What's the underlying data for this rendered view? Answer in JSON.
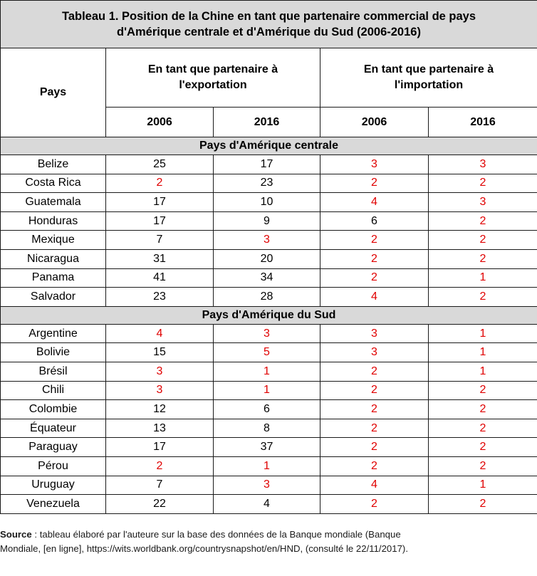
{
  "title_line1": "Tableau 1. Position de la Chine en tant que partenaire commercial de pays",
  "title_line2": "d'Amérique centrale et d'Amérique du Sud (2006-2016)",
  "headers": {
    "pays": "Pays",
    "export_line1": "En tant que partenaire à",
    "export_line2": "l'exportation",
    "import_line1": "En tant que partenaire à",
    "import_line2": "l'importation",
    "years": [
      "2006",
      "2016",
      "2006",
      "2016"
    ]
  },
  "sections": [
    {
      "label": "Pays d'Amérique centrale",
      "rows": [
        {
          "country": "Belize",
          "values": [
            "25",
            "17",
            "3",
            "3"
          ],
          "red": [
            false,
            false,
            true,
            true
          ]
        },
        {
          "country": "Costa Rica",
          "values": [
            "2",
            "23",
            "2",
            "2"
          ],
          "red": [
            true,
            false,
            true,
            true
          ]
        },
        {
          "country": "Guatemala",
          "values": [
            "17",
            "10",
            "4",
            "3"
          ],
          "red": [
            false,
            false,
            true,
            true
          ]
        },
        {
          "country": "Honduras",
          "values": [
            "17",
            "9",
            "6",
            "2"
          ],
          "red": [
            false,
            false,
            false,
            true
          ]
        },
        {
          "country": "Mexique",
          "values": [
            "7",
            "3",
            "2",
            "2"
          ],
          "red": [
            false,
            true,
            true,
            true
          ]
        },
        {
          "country": "Nicaragua",
          "values": [
            "31",
            "20",
            "2",
            "2"
          ],
          "red": [
            false,
            false,
            true,
            true
          ]
        },
        {
          "country": "Panama",
          "values": [
            "41",
            "34",
            "2",
            "1"
          ],
          "red": [
            false,
            false,
            true,
            true
          ]
        },
        {
          "country": "Salvador",
          "values": [
            "23",
            "28",
            "4",
            "2"
          ],
          "red": [
            false,
            false,
            true,
            true
          ]
        }
      ]
    },
    {
      "label": "Pays d'Amérique du Sud",
      "rows": [
        {
          "country": "Argentine",
          "values": [
            "4",
            "3",
            "3",
            "1"
          ],
          "red": [
            true,
            true,
            true,
            true
          ]
        },
        {
          "country": "Bolivie",
          "values": [
            "15",
            "5",
            "3",
            "1"
          ],
          "red": [
            false,
            true,
            true,
            true
          ]
        },
        {
          "country": "Brésil",
          "values": [
            "3",
            "1",
            "2",
            "1"
          ],
          "red": [
            true,
            true,
            true,
            true
          ]
        },
        {
          "country": "Chili",
          "values": [
            "3",
            "1",
            "2",
            "2"
          ],
          "red": [
            true,
            true,
            true,
            true
          ]
        },
        {
          "country": "Colombie",
          "values": [
            "12",
            "6",
            "2",
            "2"
          ],
          "red": [
            false,
            false,
            true,
            true
          ]
        },
        {
          "country": "Équateur",
          "values": [
            "13",
            "8",
            "2",
            "2"
          ],
          "red": [
            false,
            false,
            true,
            true
          ]
        },
        {
          "country": "Paraguay",
          "values": [
            "17",
            "37",
            "2",
            "2"
          ],
          "red": [
            false,
            false,
            true,
            true
          ]
        },
        {
          "country": "Pérou",
          "values": [
            "2",
            "1",
            "2",
            "2"
          ],
          "red": [
            true,
            true,
            true,
            true
          ]
        },
        {
          "country": "Uruguay",
          "values": [
            "7",
            "3",
            "4",
            "1"
          ],
          "red": [
            false,
            true,
            true,
            true
          ]
        },
        {
          "country": "Venezuela",
          "values": [
            "22",
            "4",
            "2",
            "2"
          ],
          "red": [
            false,
            false,
            true,
            true
          ]
        }
      ]
    }
  ],
  "source": {
    "label": "Source",
    "line1": " : tableau élaboré par l'auteure sur la base des données de la Banque mondiale (Banque",
    "line2": "Mondiale, [en ligne], https://wits.worldbank.org/countrysnapshot/en/HND, (consulté le 22/11/2017)."
  },
  "colors": {
    "highlight": "#e00000",
    "header_bg": "#d9d9d9"
  }
}
